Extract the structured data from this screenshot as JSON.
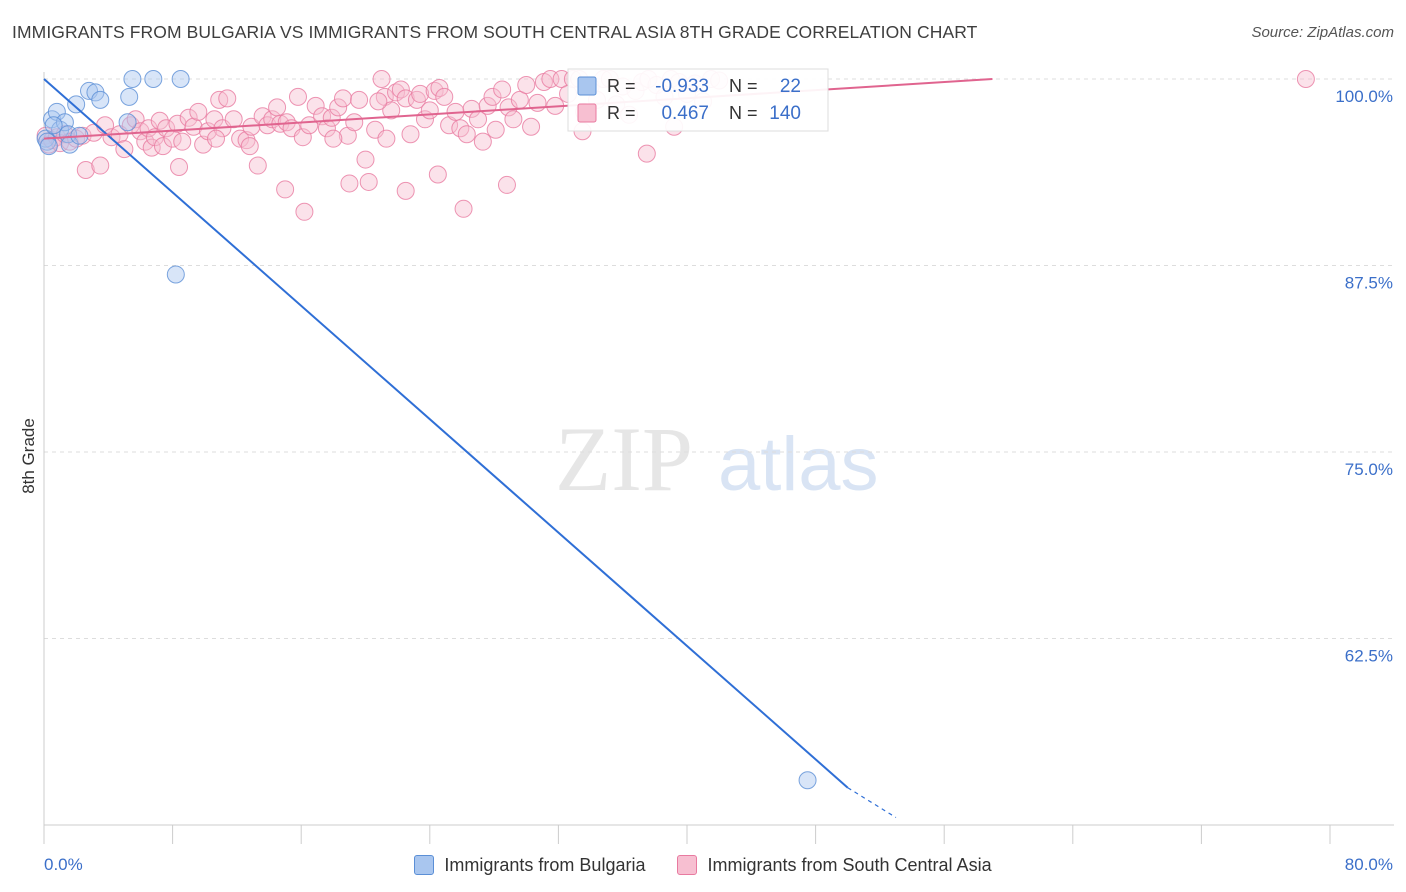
{
  "title": "IMMIGRANTS FROM BULGARIA VS IMMIGRANTS FROM SOUTH CENTRAL ASIA 8TH GRADE CORRELATION CHART",
  "source": "Source: ZipAtlas.com",
  "watermark": {
    "zip": "ZIP",
    "atlas": "atlas"
  },
  "colors": {
    "blue": "#5b8fd6",
    "blue_fill": "#a9c6ef",
    "blue_line": "#2f6fd6",
    "pink": "#e87aa0",
    "pink_fill": "#f7bfd1",
    "pink_line": "#e0648f",
    "value_text": "#3b6fc9",
    "grid": "#dddddd"
  },
  "chart_data": {
    "type": "scatter",
    "title": "IMMIGRANTS FROM BULGARIA VS IMMIGRANTS FROM SOUTH CENTRAL ASIA 8TH GRADE CORRELATION CHART",
    "xlabel": "",
    "ylabel": "8th Grade",
    "xlim": [
      0,
      80
    ],
    "ylim": [
      50,
      100
    ],
    "x_tick_labels": [
      "0.0%",
      "80.0%"
    ],
    "y_ticks": [
      62.5,
      75.0,
      87.5,
      100.0
    ],
    "y_tick_labels": [
      "62.5%",
      "75.0%",
      "87.5%",
      "100.0%"
    ],
    "grid": "horizontal dashed",
    "legend_placement": "top-center",
    "stats": [
      {
        "r_label": "R =",
        "r": "-0.933",
        "n_label": "N =",
        "n": "22"
      },
      {
        "r_label": "R =",
        "r": "0.467",
        "n_label": "N =",
        "n": "140"
      }
    ],
    "series": [
      {
        "name": "Immigrants from Bulgaria",
        "color": "blue",
        "trend": {
          "x": [
            0,
            50
          ],
          "y": [
            100,
            52.5
          ],
          "dashed_to": [
            53,
            50.5
          ]
        },
        "points": [
          [
            0.1,
            96.0
          ],
          [
            0.2,
            95.8
          ],
          [
            0.3,
            95.5
          ],
          [
            0.5,
            97.3
          ],
          [
            0.8,
            97.8
          ],
          [
            1.0,
            96.6
          ],
          [
            1.3,
            97.1
          ],
          [
            1.5,
            96.3
          ],
          [
            1.6,
            95.6
          ],
          [
            2.0,
            98.3
          ],
          [
            2.2,
            96.2
          ],
          [
            2.8,
            99.2
          ],
          [
            3.2,
            99.1
          ],
          [
            3.5,
            98.6
          ],
          [
            5.2,
            97.1
          ],
          [
            5.3,
            98.8
          ],
          [
            5.5,
            100
          ],
          [
            6.8,
            100
          ],
          [
            8.5,
            100
          ],
          [
            8.2,
            86.9
          ],
          [
            0.6,
            96.9
          ],
          [
            47.5,
            53.0
          ]
        ]
      },
      {
        "name": "Immigrants from South Central Asia",
        "color": "pink",
        "trend": {
          "x": [
            0,
            59
          ],
          "y": [
            96.0,
            100
          ]
        },
        "points": [
          [
            0.1,
            96.2
          ],
          [
            0.3,
            95.6
          ],
          [
            0.5,
            95.9
          ],
          [
            0.8,
            96.1
          ],
          [
            1.0,
            95.7
          ],
          [
            1.3,
            96.3
          ],
          [
            1.6,
            95.8
          ],
          [
            2.0,
            96.0
          ],
          [
            2.4,
            96.2
          ],
          [
            2.6,
            93.9
          ],
          [
            3.1,
            96.4
          ],
          [
            3.5,
            94.2
          ],
          [
            3.8,
            96.9
          ],
          [
            4.2,
            96.1
          ],
          [
            4.7,
            96.3
          ],
          [
            5.0,
            95.3
          ],
          [
            5.4,
            96.9
          ],
          [
            5.7,
            97.3
          ],
          [
            6.0,
            96.5
          ],
          [
            6.3,
            95.8
          ],
          [
            6.5,
            96.7
          ],
          [
            6.7,
            95.4
          ],
          [
            6.9,
            96.1
          ],
          [
            7.2,
            97.2
          ],
          [
            7.4,
            95.5
          ],
          [
            7.6,
            96.7
          ],
          [
            8.0,
            96.0
          ],
          [
            8.3,
            97.0
          ],
          [
            8.6,
            95.8
          ],
          [
            9.0,
            97.4
          ],
          [
            9.3,
            96.8
          ],
          [
            9.6,
            97.8
          ],
          [
            9.9,
            95.6
          ],
          [
            10.2,
            96.5
          ],
          [
            10.6,
            97.3
          ],
          [
            10.9,
            98.6
          ],
          [
            11.1,
            96.7
          ],
          [
            11.4,
            98.7
          ],
          [
            11.8,
            97.3
          ],
          [
            12.2,
            96.0
          ],
          [
            12.6,
            95.9
          ],
          [
            12.9,
            96.8
          ],
          [
            13.3,
            94.2
          ],
          [
            13.6,
            97.5
          ],
          [
            13.9,
            96.9
          ],
          [
            14.2,
            97.3
          ],
          [
            14.5,
            98.1
          ],
          [
            14.7,
            97.0
          ],
          [
            15.1,
            97.1
          ],
          [
            15.4,
            96.7
          ],
          [
            15.8,
            98.8
          ],
          [
            16.1,
            96.1
          ],
          [
            16.5,
            96.9
          ],
          [
            16.9,
            98.2
          ],
          [
            17.3,
            97.5
          ],
          [
            17.6,
            96.7
          ],
          [
            17.9,
            97.4
          ],
          [
            18.3,
            98.1
          ],
          [
            18.6,
            98.7
          ],
          [
            18.9,
            96.2
          ],
          [
            19.3,
            97.1
          ],
          [
            19.6,
            98.6
          ],
          [
            20.0,
            94.6
          ],
          [
            20.2,
            93.1
          ],
          [
            20.6,
            96.6
          ],
          [
            21.0,
            100
          ],
          [
            21.2,
            98.8
          ],
          [
            21.6,
            97.9
          ],
          [
            21.9,
            99.1
          ],
          [
            22.2,
            99.3
          ],
          [
            22.5,
            98.7
          ],
          [
            22.8,
            96.3
          ],
          [
            23.2,
            98.6
          ],
          [
            23.4,
            99.0
          ],
          [
            23.7,
            97.3
          ],
          [
            24.0,
            97.9
          ],
          [
            24.3,
            99.2
          ],
          [
            24.6,
            99.4
          ],
          [
            24.9,
            98.8
          ],
          [
            25.2,
            96.9
          ],
          [
            25.6,
            97.8
          ],
          [
            25.9,
            96.7
          ],
          [
            26.3,
            96.3
          ],
          [
            26.6,
            98.0
          ],
          [
            27.0,
            97.3
          ],
          [
            27.3,
            95.8
          ],
          [
            27.6,
            98.2
          ],
          [
            27.9,
            98.8
          ],
          [
            28.1,
            96.6
          ],
          [
            28.5,
            99.3
          ],
          [
            28.9,
            98.1
          ],
          [
            29.2,
            97.3
          ],
          [
            29.6,
            98.6
          ],
          [
            30.0,
            99.6
          ],
          [
            30.3,
            96.8
          ],
          [
            30.7,
            98.4
          ],
          [
            31.1,
            99.8
          ],
          [
            31.5,
            100
          ],
          [
            31.8,
            98.2
          ],
          [
            32.2,
            100
          ],
          [
            32.6,
            99.0
          ],
          [
            32.9,
            100
          ],
          [
            33.3,
            100
          ],
          [
            33.6,
            97.8
          ],
          [
            34.0,
            99.5
          ],
          [
            34.4,
            98.6
          ],
          [
            34.8,
            100
          ],
          [
            35.2,
            100
          ],
          [
            35.6,
            98.3
          ],
          [
            36.0,
            99.5
          ],
          [
            36.4,
            97.6
          ],
          [
            36.8,
            99.2
          ],
          [
            37.2,
            99.8
          ],
          [
            37.6,
            100
          ],
          [
            38.1,
            99.6
          ],
          [
            38.6,
            98.8
          ],
          [
            39.0,
            100
          ],
          [
            39.5,
            99.8
          ],
          [
            40.0,
            99.0
          ],
          [
            40.5,
            99.7
          ],
          [
            41.0,
            98.5
          ],
          [
            41.5,
            100
          ],
          [
            42.0,
            99.9
          ],
          [
            37.5,
            95.0
          ],
          [
            39.2,
            96.8
          ],
          [
            22.5,
            92.5
          ],
          [
            28.8,
            92.9
          ],
          [
            21.3,
            96.0
          ],
          [
            8.4,
            94.1
          ],
          [
            15.0,
            92.6
          ],
          [
            16.2,
            91.1
          ],
          [
            19.0,
            93.0
          ],
          [
            24.5,
            93.6
          ],
          [
            26.1,
            91.3
          ],
          [
            10.7,
            96.0
          ],
          [
            12.8,
            95.5
          ],
          [
            18.0,
            96.0
          ],
          [
            33.5,
            96.5
          ],
          [
            20.8,
            98.5
          ],
          [
            78.5,
            100
          ]
        ]
      }
    ]
  },
  "legend": {
    "items": [
      {
        "label": "Immigrants from Bulgaria",
        "color": "blue"
      },
      {
        "label": "Immigrants from South Central Asia",
        "color": "pink"
      }
    ]
  }
}
